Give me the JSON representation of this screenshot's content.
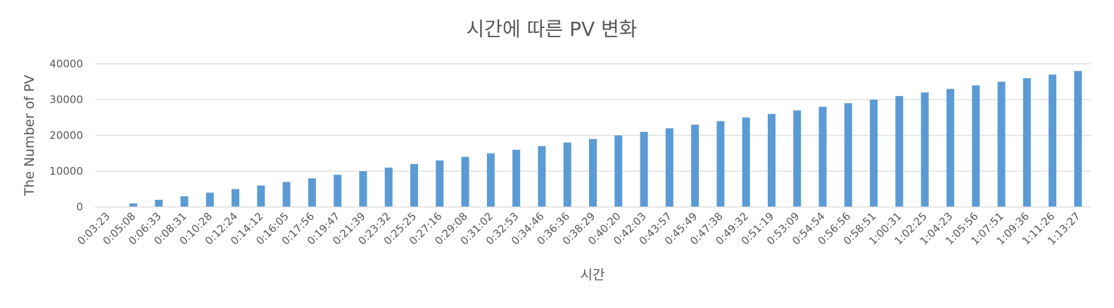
{
  "chart_data": {
    "type": "bar",
    "title": "시간에 따른 PV 변화",
    "xlabel": "시간",
    "ylabel": "The Number of PV",
    "ylim": [
      0,
      40000
    ],
    "yticks": [
      "0",
      "10000",
      "20000",
      "30000",
      "40000"
    ],
    "grid": true,
    "legend": "none",
    "bar_color": "#5b9bd5",
    "categories": [
      "0:03:23",
      "0:05:08",
      "0:06:33",
      "0:08:31",
      "0:10:28",
      "0:12:24",
      "0:14:12",
      "0:16:05",
      "0:17:56",
      "0:19:47",
      "0:21:39",
      "0:23:32",
      "0:25:25",
      "0:27:16",
      "0:29:08",
      "0:31:02",
      "0:32:53",
      "0:34:46",
      "0:36:36",
      "0:38:29",
      "0:40:20",
      "0:42:03",
      "0:43:57",
      "0:45:49",
      "0:47:38",
      "0:49:32",
      "0:51:19",
      "0:53:09",
      "0:54:54",
      "0:56:56",
      "0:58:51",
      "1:00:31",
      "1:02:25",
      "1:04:23",
      "1:05:56",
      "1:07:51",
      "1:09:36",
      "1:11:26",
      "1:13:27"
    ],
    "values": [
      0,
      1000,
      2000,
      3000,
      4000,
      5000,
      6000,
      7000,
      8000,
      9000,
      10000,
      11000,
      12000,
      13000,
      14000,
      15000,
      16000,
      17000,
      18000,
      19000,
      20000,
      21000,
      22000,
      23000,
      24000,
      25000,
      26000,
      27000,
      28000,
      29000,
      30000,
      31000,
      32000,
      33000,
      34000,
      35000,
      36000,
      37000,
      38000
    ]
  }
}
